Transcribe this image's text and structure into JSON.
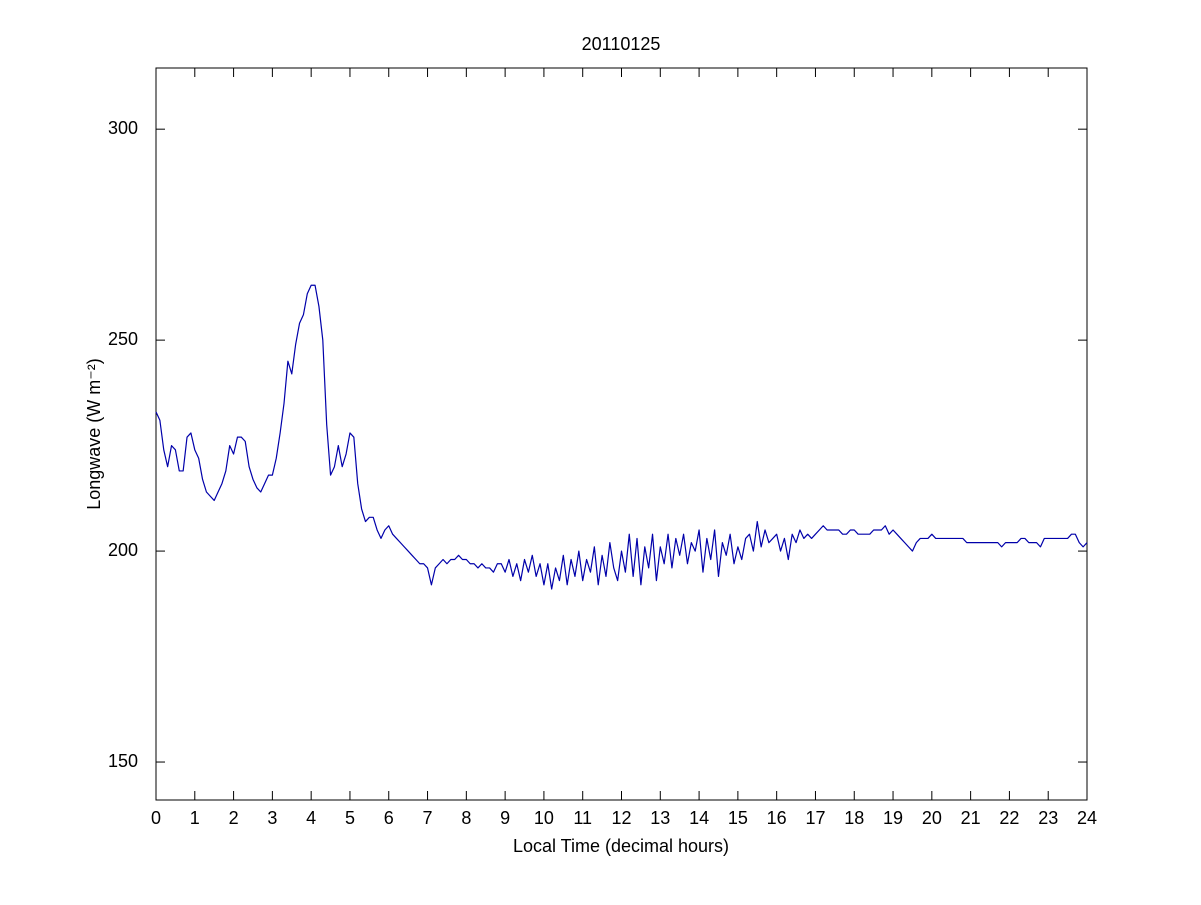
{
  "chart_data": {
    "type": "line",
    "title": "20110125",
    "x_label": "Local Time (decimal hours)",
    "y_label": "Longwave (W m⁻²)",
    "xlim": [
      0,
      24
    ],
    "ylim": [
      141,
      314.5
    ],
    "xticks": [
      0,
      1,
      2,
      3,
      4,
      5,
      6,
      7,
      8,
      9,
      10,
      11,
      12,
      13,
      14,
      15,
      16,
      17,
      18,
      19,
      20,
      21,
      22,
      23,
      24
    ],
    "yticks": [
      150,
      200,
      250,
      300
    ],
    "grid": false,
    "x": [
      0,
      0.1,
      0.2,
      0.3,
      0.4,
      0.5,
      0.6,
      0.7,
      0.8,
      0.9,
      1,
      1.1,
      1.2,
      1.3,
      1.4,
      1.5,
      1.6,
      1.7,
      1.8,
      1.9,
      2,
      2.1,
      2.2,
      2.3,
      2.4,
      2.5,
      2.6,
      2.7,
      2.8,
      2.9,
      3,
      3.1,
      3.2,
      3.3,
      3.4,
      3.5,
      3.6,
      3.7,
      3.8,
      3.9,
      4,
      4.1,
      4.2,
      4.3,
      4.4,
      4.5,
      4.6,
      4.7,
      4.8,
      4.9,
      5,
      5.1,
      5.2,
      5.3,
      5.4,
      5.5,
      5.6,
      5.7,
      5.8,
      5.9,
      6,
      6.1,
      6.2,
      6.3,
      6.4,
      6.5,
      6.6,
      6.7,
      6.8,
      6.9,
      7,
      7.1,
      7.2,
      7.3,
      7.4,
      7.5,
      7.6,
      7.7,
      7.8,
      7.9,
      8,
      8.1,
      8.2,
      8.3,
      8.4,
      8.5,
      8.6,
      8.7,
      8.8,
      8.9,
      9,
      9.1,
      9.2,
      9.3,
      9.4,
      9.5,
      9.6,
      9.7,
      9.8,
      9.9,
      10,
      10.1,
      10.2,
      10.3,
      10.4,
      10.5,
      10.6,
      10.7,
      10.8,
      10.9,
      11,
      11.1,
      11.2,
      11.3,
      11.4,
      11.5,
      11.6,
      11.7,
      11.8,
      11.9,
      12,
      12.1,
      12.2,
      12.3,
      12.4,
      12.5,
      12.6,
      12.7,
      12.8,
      12.9,
      13,
      13.1,
      13.2,
      13.3,
      13.4,
      13.5,
      13.6,
      13.7,
      13.8,
      13.9,
      14,
      14.1,
      14.2,
      14.3,
      14.4,
      14.5,
      14.6,
      14.7,
      14.8,
      14.9,
      15,
      15.1,
      15.2,
      15.3,
      15.4,
      15.5,
      15.6,
      15.7,
      15.8,
      15.9,
      16,
      16.1,
      16.2,
      16.3,
      16.4,
      16.5,
      16.6,
      16.7,
      16.8,
      16.9,
      17,
      17.1,
      17.2,
      17.3,
      17.4,
      17.5,
      17.6,
      17.7,
      17.8,
      17.9,
      18,
      18.1,
      18.2,
      18.3,
      18.4,
      18.5,
      18.6,
      18.7,
      18.8,
      18.9,
      19,
      19.1,
      19.2,
      19.3,
      19.4,
      19.5,
      19.6,
      19.7,
      19.8,
      19.9,
      20,
      20.1,
      20.2,
      20.3,
      20.4,
      20.5,
      20.6,
      20.7,
      20.8,
      20.9,
      21,
      21.1,
      21.2,
      21.3,
      21.4,
      21.5,
      21.6,
      21.7,
      21.8,
      21.9,
      22,
      22.1,
      22.2,
      22.3,
      22.4,
      22.5,
      22.6,
      22.7,
      22.8,
      22.9,
      23,
      23.1,
      23.2,
      23.3,
      23.4,
      23.5,
      23.6,
      23.7,
      23.8,
      23.9,
      24
    ],
    "series": [
      {
        "color": "#0000aa",
        "values": [
          233,
          231,
          224,
          220,
          225,
          224,
          219,
          219,
          227,
          228,
          224,
          222,
          217,
          214,
          213,
          212,
          214,
          216,
          219,
          225,
          223,
          227,
          227,
          226,
          220,
          217,
          215,
          214,
          216,
          218,
          218,
          222,
          228,
          235,
          245,
          242,
          249,
          254,
          256,
          261,
          263,
          263,
          258,
          250,
          230,
          218,
          220,
          225,
          220,
          223,
          228,
          227,
          216,
          210,
          207,
          208,
          208,
          205,
          203,
          205,
          206,
          204,
          203,
          202,
          201,
          200,
          199,
          198,
          197,
          197,
          196,
          192,
          196,
          197,
          198,
          197,
          198,
          198,
          199,
          198,
          198,
          197,
          197,
          196,
          197,
          196,
          196,
          195,
          197,
          197,
          195,
          198,
          194,
          197,
          193,
          198,
          195,
          199,
          194,
          197,
          192,
          197,
          191,
          196,
          193,
          199,
          192,
          198,
          194,
          200,
          193,
          198,
          195,
          201,
          192,
          199,
          194,
          202,
          196,
          193,
          200,
          195,
          204,
          194,
          203,
          192,
          201,
          196,
          204,
          193,
          201,
          197,
          204,
          196,
          203,
          199,
          204,
          197,
          202,
          200,
          205,
          195,
          203,
          198,
          205,
          194,
          202,
          199,
          204,
          197,
          201,
          198,
          203,
          204,
          200,
          207,
          201,
          205,
          202,
          203,
          204,
          200,
          203,
          198,
          204,
          202,
          205,
          203,
          204,
          203,
          204,
          205,
          206,
          205,
          205,
          205,
          205,
          204,
          204,
          205,
          205,
          204,
          204,
          204,
          204,
          205,
          205,
          205,
          206,
          204,
          205,
          204,
          203,
          202,
          201,
          200,
          202,
          203,
          203,
          203,
          204,
          203,
          203,
          203,
          203,
          203,
          203,
          203,
          203,
          202,
          202,
          202,
          202,
          202,
          202,
          202,
          202,
          202,
          201,
          202,
          202,
          202,
          202,
          203,
          203,
          202,
          202,
          202,
          201,
          203,
          203,
          203,
          203,
          203,
          203,
          203,
          204,
          204,
          202,
          201,
          202
        ]
      }
    ]
  }
}
